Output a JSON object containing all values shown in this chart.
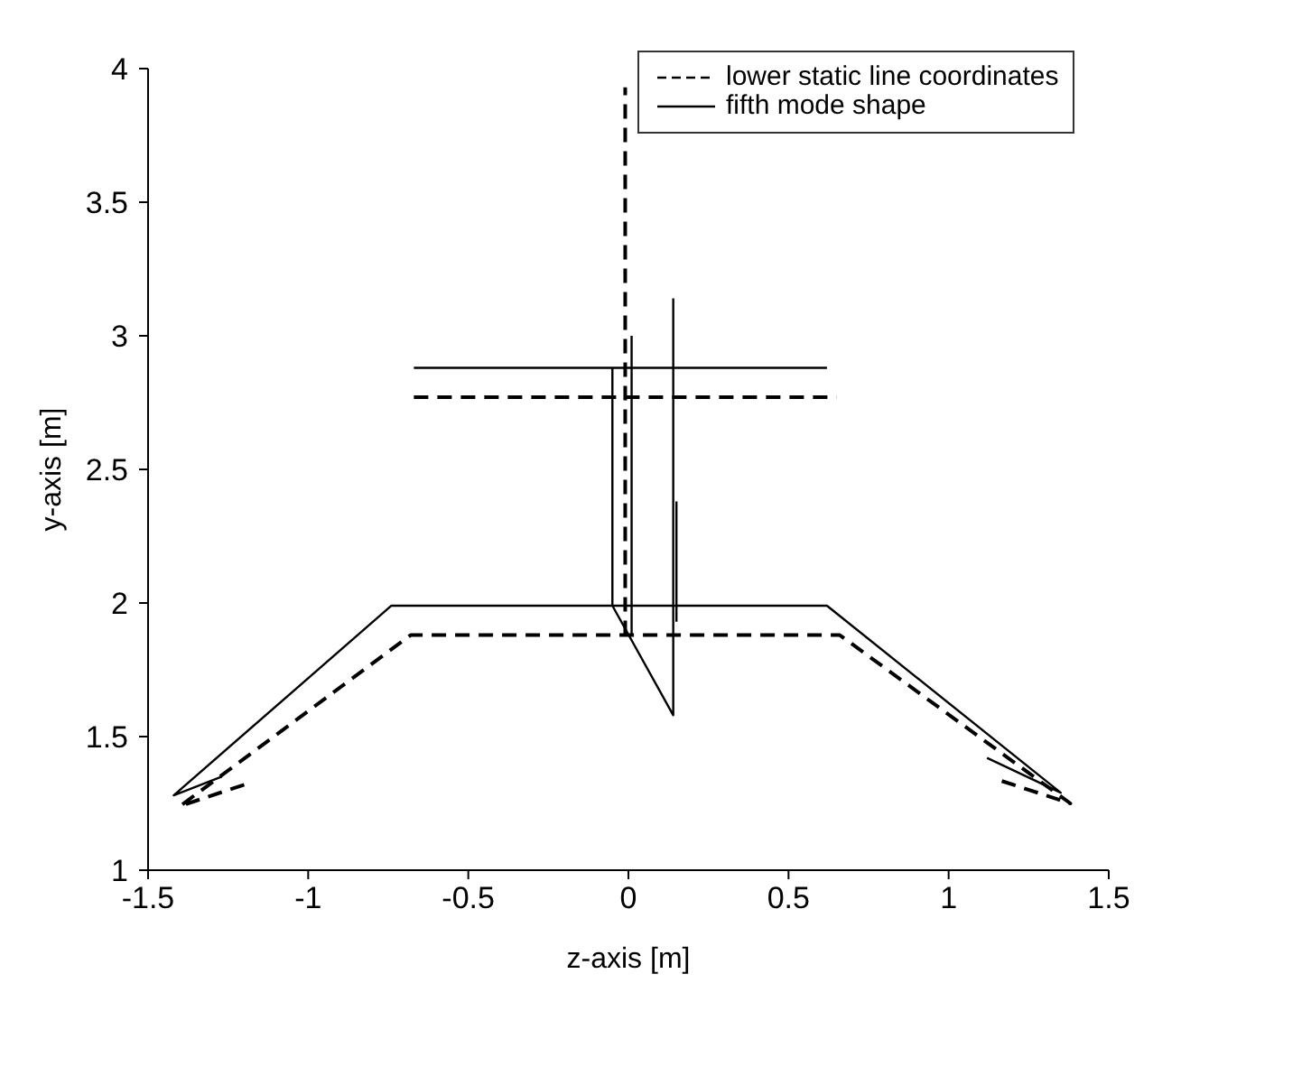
{
  "chart_data": {
    "type": "line",
    "xlabel": "z-axis [m]",
    "ylabel": "y-axis [m]",
    "xlim": [
      -1.5,
      1.5
    ],
    "xticks": [
      -1.5,
      -1,
      -0.5,
      0,
      0.5,
      1,
      1.5
    ],
    "ylim": [
      1,
      4
    ],
    "yticks": [
      1,
      1.5,
      2,
      2.5,
      3,
      3.5,
      4
    ],
    "grid": false,
    "legend": "top right",
    "marker": "none",
    "series": [
      {
        "name": "lower static line coordinates",
        "color": "#000000",
        "line_style": "dashed",
        "x": [
          -1.2,
          -1.4,
          -0.68,
          0.66,
          1.38,
          1.15,
          null,
          -0.67,
          0.65,
          null,
          -0.01,
          -0.01
        ],
        "values": [
          1.32,
          1.24,
          1.88,
          1.88,
          1.25,
          1.34,
          null,
          2.77,
          2.77,
          null,
          1.88,
          3.93
        ]
      },
      {
        "name": "fifth mode shape",
        "color": "#000000",
        "line_style": "solid",
        "x": [
          -1.27,
          -1.42,
          -0.74,
          0.62,
          1.35,
          1.12,
          null,
          -0.67,
          0.62,
          null,
          -0.05,
          -0.05,
          0.14,
          0.14,
          null,
          0.01,
          0.01,
          null,
          0.15,
          0.15
        ],
        "values": [
          1.35,
          1.28,
          1.99,
          1.99,
          1.29,
          1.42,
          null,
          2.88,
          2.88,
          null,
          2.88,
          1.99,
          1.58,
          3.14,
          null,
          1.88,
          3.0,
          null,
          2.38,
          1.93
        ]
      }
    ]
  }
}
